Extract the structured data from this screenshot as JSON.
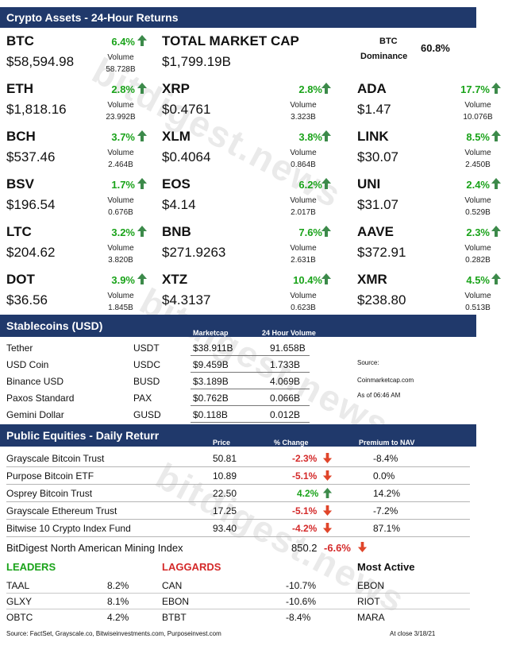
{
  "crypto_header": "Crypto Assets - 24-Hour Returns",
  "btc": {
    "symbol": "BTC",
    "pct": "6.4%",
    "volume_label": "Volume",
    "volume": "58.728B",
    "price": "$58,594.98"
  },
  "market_cap": {
    "label": "TOTAL MARKET CAP",
    "value": "$1,799.19B"
  },
  "dominance": {
    "label_line1": "BTC",
    "label_line2": "Dominance",
    "value": "60.8%"
  },
  "coins": [
    {
      "symbol": "ETH",
      "pct": "2.8%",
      "volume": "23.992B",
      "price": "$1,818.16"
    },
    {
      "symbol": "XRP",
      "pct": "2.8%",
      "volume": "3.323B",
      "price": "$0.4761"
    },
    {
      "symbol": "ADA",
      "pct": "17.7%",
      "volume": "10.076B",
      "price": "$1.47"
    },
    {
      "symbol": "BCH",
      "pct": "3.7%",
      "volume": "2.464B",
      "price": "$537.46"
    },
    {
      "symbol": "XLM",
      "pct": "3.8%",
      "volume": "0.864B",
      "price": "$0.4064"
    },
    {
      "symbol": "LINK",
      "pct": "8.5%",
      "volume": "2.450B",
      "price": "$30.07"
    },
    {
      "symbol": "BSV",
      "pct": "1.7%",
      "volume": "0.676B",
      "price": "$196.54"
    },
    {
      "symbol": "EOS",
      "pct": "6.2%",
      "volume": "2.017B",
      "price": "$4.14"
    },
    {
      "symbol": "UNI",
      "pct": "2.4%",
      "volume": "0.529B",
      "price": "$31.07"
    },
    {
      "symbol": "LTC",
      "pct": "3.2%",
      "volume": "3.820B",
      "price": "$204.62"
    },
    {
      "symbol": "BNB",
      "pct": "7.6%",
      "volume": "2.631B",
      "price": "$271.9263"
    },
    {
      "symbol": "AAVE",
      "pct": "2.3%",
      "volume": "0.282B",
      "price": "$372.91"
    },
    {
      "symbol": "DOT",
      "pct": "3.9%",
      "volume": "1.845B",
      "price": "$36.56"
    },
    {
      "symbol": "XTZ",
      "pct": "10.4%",
      "volume": "0.623B",
      "price": "$4.3137"
    },
    {
      "symbol": "XMR",
      "pct": "4.5%",
      "volume": "0.513B",
      "price": "$238.80"
    }
  ],
  "volume_label": "Volume",
  "stablecoins": {
    "header": "Stablecoins (USD)",
    "col_marketcap": "Marketcap",
    "col_volume": "24 Hour Volume",
    "rows": [
      {
        "name": "Tether",
        "ticker": "USDT",
        "marketcap": "$38.911B",
        "volume": "91.658B"
      },
      {
        "name": "USD Coin",
        "ticker": "USDC",
        "marketcap": "$9.459B",
        "volume": "1.733B"
      },
      {
        "name": "Binance USD",
        "ticker": "BUSD",
        "marketcap": "$3.189B",
        "volume": "4.069B"
      },
      {
        "name": "Paxos Standard",
        "ticker": "PAX",
        "marketcap": "$0.762B",
        "volume": "0.066B"
      },
      {
        "name": "Gemini Dollar",
        "ticker": "GUSD",
        "marketcap": "$0.118B",
        "volume": "0.012B"
      }
    ],
    "source_label": "Source:",
    "source_site": "Coinmarketcap.com",
    "as_of": "As of 06:46 AM"
  },
  "equities": {
    "header": "Public Equities - Daily Returr",
    "col_price": "Price",
    "col_change": "% Change",
    "col_nav": "Premium to NAV",
    "rows": [
      {
        "name": "Grayscale Bitcoin Trust",
        "price": "50.81",
        "change": "-2.3%",
        "dir": "down",
        "nav": "-8.4%"
      },
      {
        "name": "Purpose Bitcoin ETF",
        "price": "10.89",
        "change": "-5.1%",
        "dir": "down",
        "nav": "0.0%"
      },
      {
        "name": "Osprey Bitcoin Trust",
        "price": "22.50",
        "change": "4.2%",
        "dir": "up",
        "nav": "14.2%"
      },
      {
        "name": "Grayscale Ethereum Trust",
        "price": "17.25",
        "change": "-5.1%",
        "dir": "down",
        "nav": "-7.2%"
      },
      {
        "name": "Bitwise 10 Crypto Index Fund",
        "price": "93.40",
        "change": "-4.2%",
        "dir": "down",
        "nav": "87.1%"
      }
    ],
    "mining": {
      "name": "BitDigest North American Mining Index",
      "value": "850.2",
      "change": "-6.6%"
    }
  },
  "leaders": {
    "title": "LEADERS",
    "rows": [
      {
        "ticker": "TAAL",
        "pct": "8.2%"
      },
      {
        "ticker": "GLXY",
        "pct": "8.1%"
      },
      {
        "ticker": "OBTC",
        "pct": "4.2%"
      }
    ]
  },
  "laggards": {
    "title": "LAGGARDS",
    "rows": [
      {
        "ticker": "CAN",
        "pct": "-10.7%"
      },
      {
        "ticker": "EBON",
        "pct": "-10.6%"
      },
      {
        "ticker": "BTBT",
        "pct": "-8.4%"
      }
    ]
  },
  "most_active": {
    "title": "Most Active",
    "rows": [
      "EBON",
      "RIOT",
      "MARA"
    ]
  },
  "footer": {
    "sources": "Source: FactSet, Grayscale.co, Bitwiseinvestments.com, Purposeinvest.com",
    "close": "At close  3/18/21"
  },
  "watermark": "bitdigest.news",
  "colors": {
    "header_bg": "#20396b",
    "up": "#1aa31a",
    "down": "#d42a2a",
    "up_arrow": "#3c8a4a",
    "down_arrow": "#e0452a"
  }
}
